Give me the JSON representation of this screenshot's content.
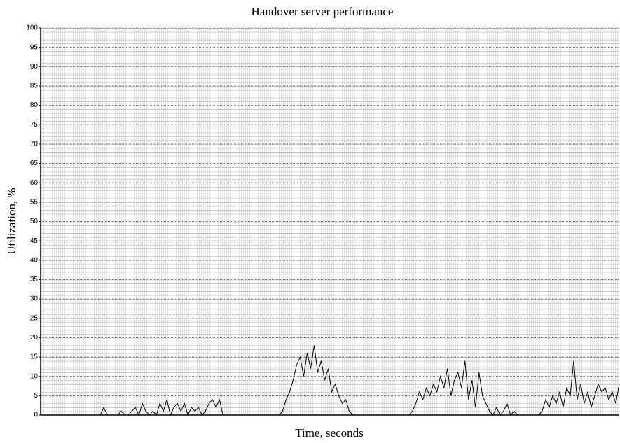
{
  "chart_data": {
    "type": "line",
    "title": "Handover server performance",
    "x_label": "Time, seconds",
    "y_label": "Utilization, %",
    "color": "#000000",
    "grid": true,
    "ylim": [
      0,
      100
    ],
    "yticks": [
      0,
      5,
      10,
      15,
      20,
      25,
      30,
      35,
      40,
      45,
      50,
      55,
      60,
      65,
      70,
      75,
      80,
      85,
      90,
      95,
      100
    ],
    "values": [
      0,
      0,
      0,
      0,
      0,
      0,
      0,
      0,
      0,
      0,
      0,
      0,
      0,
      0,
      0,
      0,
      0,
      0,
      2,
      0,
      0,
      0,
      0,
      1,
      0,
      0,
      1,
      2,
      0,
      3,
      1,
      0,
      1,
      0,
      3,
      1,
      4,
      0,
      2,
      3,
      1,
      3,
      0,
      2,
      1,
      2,
      0,
      1,
      3,
      4,
      2,
      4,
      0,
      0,
      0,
      0,
      0,
      0,
      0,
      0,
      0,
      0,
      0,
      0,
      0,
      0,
      0,
      0,
      0,
      1,
      4,
      6,
      9,
      13,
      15,
      10,
      16,
      12,
      18,
      11,
      14,
      9,
      12,
      6,
      8,
      5,
      3,
      4,
      1,
      0,
      0,
      0,
      0,
      0,
      0,
      0,
      0,
      0,
      0,
      0,
      0,
      0,
      0,
      0,
      0,
      0,
      1,
      3,
      6,
      4,
      7,
      5,
      8,
      6,
      10,
      7,
      12,
      5,
      9,
      11,
      7,
      14,
      4,
      9,
      2,
      11,
      5,
      3,
      1,
      0,
      2,
      0,
      1,
      3,
      0,
      1,
      0,
      0,
      0,
      0,
      0,
      0,
      0,
      1,
      4,
      2,
      5,
      3,
      6,
      2,
      7,
      5,
      14,
      4,
      8,
      3,
      6,
      2,
      5,
      8,
      6,
      7,
      4,
      6,
      3,
      8
    ]
  }
}
